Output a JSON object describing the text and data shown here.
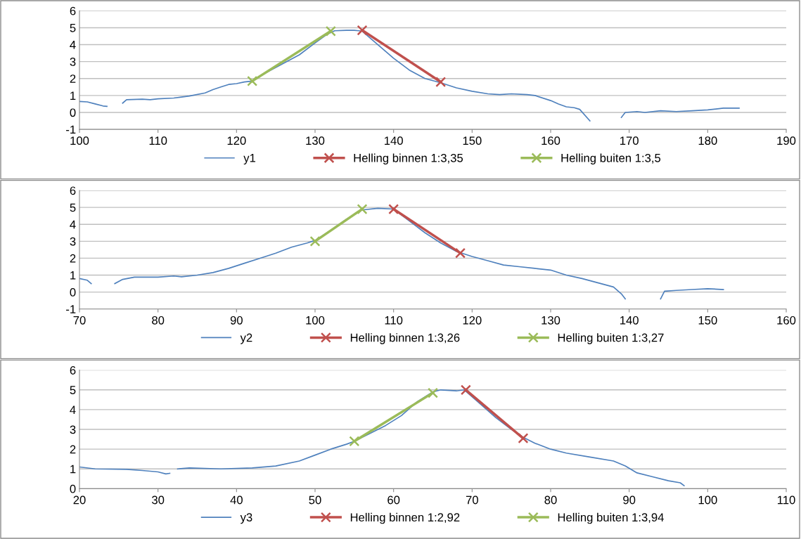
{
  "chart_data": [
    {
      "type": "line",
      "xlim": [
        100,
        190
      ],
      "xticks": [
        100,
        110,
        120,
        130,
        140,
        150,
        160,
        170,
        180,
        190
      ],
      "ylim": [
        -1,
        6
      ],
      "yticks": [
        -1,
        0,
        1,
        2,
        3,
        4,
        5,
        6
      ],
      "grid": "y",
      "legend": "bottom",
      "series": [
        {
          "name": "y1",
          "color": "#4f81bd",
          "marker": "none",
          "x": [
            100,
            101,
            102,
            103,
            103.5,
            104,
            105.5,
            106,
            108,
            109,
            110,
            112,
            114,
            116,
            117,
            118,
            119,
            120,
            121,
            122,
            124,
            126,
            128,
            130,
            131.5,
            132.5,
            134,
            135,
            136,
            138,
            140,
            142,
            144,
            146,
            148,
            150,
            152,
            153.5,
            155,
            157,
            158,
            160,
            161,
            162,
            163,
            163.7,
            165,
            167,
            169,
            169.5,
            171,
            172,
            174,
            176,
            178,
            180,
            182,
            184
          ],
          "values": [
            0.65,
            0.62,
            0.5,
            0.38,
            0.36,
            null,
            0.55,
            0.75,
            0.78,
            0.75,
            0.8,
            0.85,
            0.97,
            1.15,
            1.35,
            1.5,
            1.65,
            1.7,
            1.8,
            1.85,
            2.4,
            2.9,
            3.4,
            4.1,
            4.6,
            4.82,
            4.85,
            4.85,
            4.8,
            4.0,
            3.2,
            2.5,
            2.0,
            1.75,
            1.45,
            1.25,
            1.1,
            1.05,
            1.1,
            1.05,
            1.0,
            0.7,
            0.5,
            0.33,
            0.28,
            0.18,
            -0.5,
            null,
            -0.3,
            0.0,
            0.05,
            0.0,
            0.1,
            0.05,
            0.1,
            0.15,
            0.25,
            0.25
          ]
        },
        {
          "name": "Helling binnen 1:3,35",
          "color": "#c0504d",
          "marker": "cross",
          "x": [
            136,
            146
          ],
          "values": [
            4.85,
            1.8
          ]
        },
        {
          "name": "Helling buiten 1:3,5",
          "color": "#9bbb59",
          "marker": "cross",
          "x": [
            122,
            132
          ],
          "values": [
            1.85,
            4.8
          ]
        }
      ]
    },
    {
      "type": "line",
      "xlim": [
        70,
        160
      ],
      "xticks": [
        70,
        80,
        90,
        100,
        110,
        120,
        130,
        140,
        150,
        160
      ],
      "ylim": [
        -1,
        6
      ],
      "yticks": [
        -1,
        0,
        1,
        2,
        3,
        4,
        5,
        6
      ],
      "grid": "y",
      "legend": "bottom",
      "series": [
        {
          "name": "y2",
          "color": "#4f81bd",
          "marker": "none",
          "x": [
            70,
            71,
            71.5,
            73,
            74.5,
            75.5,
            77,
            80,
            82,
            83,
            85,
            87,
            89,
            91,
            93,
            95,
            97,
            99,
            100,
            102,
            104,
            106,
            108,
            110,
            112,
            114,
            116,
            118,
            120,
            122,
            124,
            126,
            128,
            130,
            132,
            134,
            136,
            138,
            139,
            139.5,
            142,
            144,
            144.5,
            146,
            148,
            150,
            152
          ],
          "values": [
            0.8,
            0.7,
            0.5,
            null,
            0.5,
            0.75,
            0.88,
            0.88,
            0.95,
            0.9,
            1.0,
            1.15,
            1.4,
            1.7,
            2.0,
            2.3,
            2.65,
            2.9,
            3.05,
            3.65,
            4.3,
            4.85,
            4.95,
            4.9,
            4.2,
            3.5,
            2.9,
            2.4,
            2.1,
            1.85,
            1.6,
            1.5,
            1.4,
            1.3,
            1.0,
            0.8,
            0.55,
            0.3,
            -0.1,
            -0.4,
            null,
            -0.4,
            0.05,
            0.1,
            0.15,
            0.2,
            0.15
          ]
        },
        {
          "name": "Helling binnen 1:3,26",
          "color": "#c0504d",
          "marker": "cross",
          "x": [
            110,
            118.5
          ],
          "values": [
            4.9,
            2.3
          ]
        },
        {
          "name": "Helling buiten 1:3,27",
          "color": "#9bbb59",
          "marker": "cross",
          "x": [
            100,
            106
          ],
          "values": [
            3.0,
            4.9
          ]
        }
      ]
    },
    {
      "type": "line",
      "xlim": [
        20,
        110
      ],
      "xticks": [
        20,
        30,
        40,
        50,
        60,
        70,
        80,
        90,
        100,
        110
      ],
      "ylim": [
        0,
        6
      ],
      "yticks": [
        0,
        1,
        2,
        3,
        4,
        5,
        6
      ],
      "grid": "y",
      "legend": "bottom",
      "series": [
        {
          "name": "y3",
          "color": "#4f81bd",
          "marker": "none",
          "x": [
            20,
            22,
            26,
            28,
            30,
            31,
            31.5,
            32,
            32.5,
            34,
            38,
            42,
            45,
            48,
            50,
            52,
            54,
            55,
            57,
            59,
            61,
            63,
            65,
            66,
            68,
            69,
            71,
            73,
            75,
            76.5,
            78,
            80,
            82,
            85,
            88,
            89.5,
            91,
            93,
            95,
            96.5,
            97
          ],
          "values": [
            1.1,
            1.0,
            0.98,
            0.92,
            0.85,
            0.75,
            0.78,
            null,
            1.0,
            1.05,
            1.0,
            1.05,
            1.15,
            1.4,
            1.7,
            2.0,
            2.25,
            2.4,
            2.8,
            3.2,
            3.7,
            4.4,
            4.9,
            5.0,
            4.95,
            5.0,
            4.3,
            3.6,
            3.0,
            2.6,
            2.3,
            2.0,
            1.8,
            1.6,
            1.4,
            1.15,
            0.8,
            0.6,
            0.4,
            0.3,
            0.15
          ]
        },
        {
          "name": "Helling binnen 1:2,92",
          "color": "#c0504d",
          "marker": "cross",
          "x": [
            69.2,
            76.5
          ],
          "values": [
            5.0,
            2.55
          ]
        },
        {
          "name": "Helling buiten 1:3,94",
          "color": "#9bbb59",
          "marker": "cross",
          "x": [
            55,
            65
          ],
          "values": [
            2.4,
            4.85
          ]
        }
      ]
    }
  ]
}
